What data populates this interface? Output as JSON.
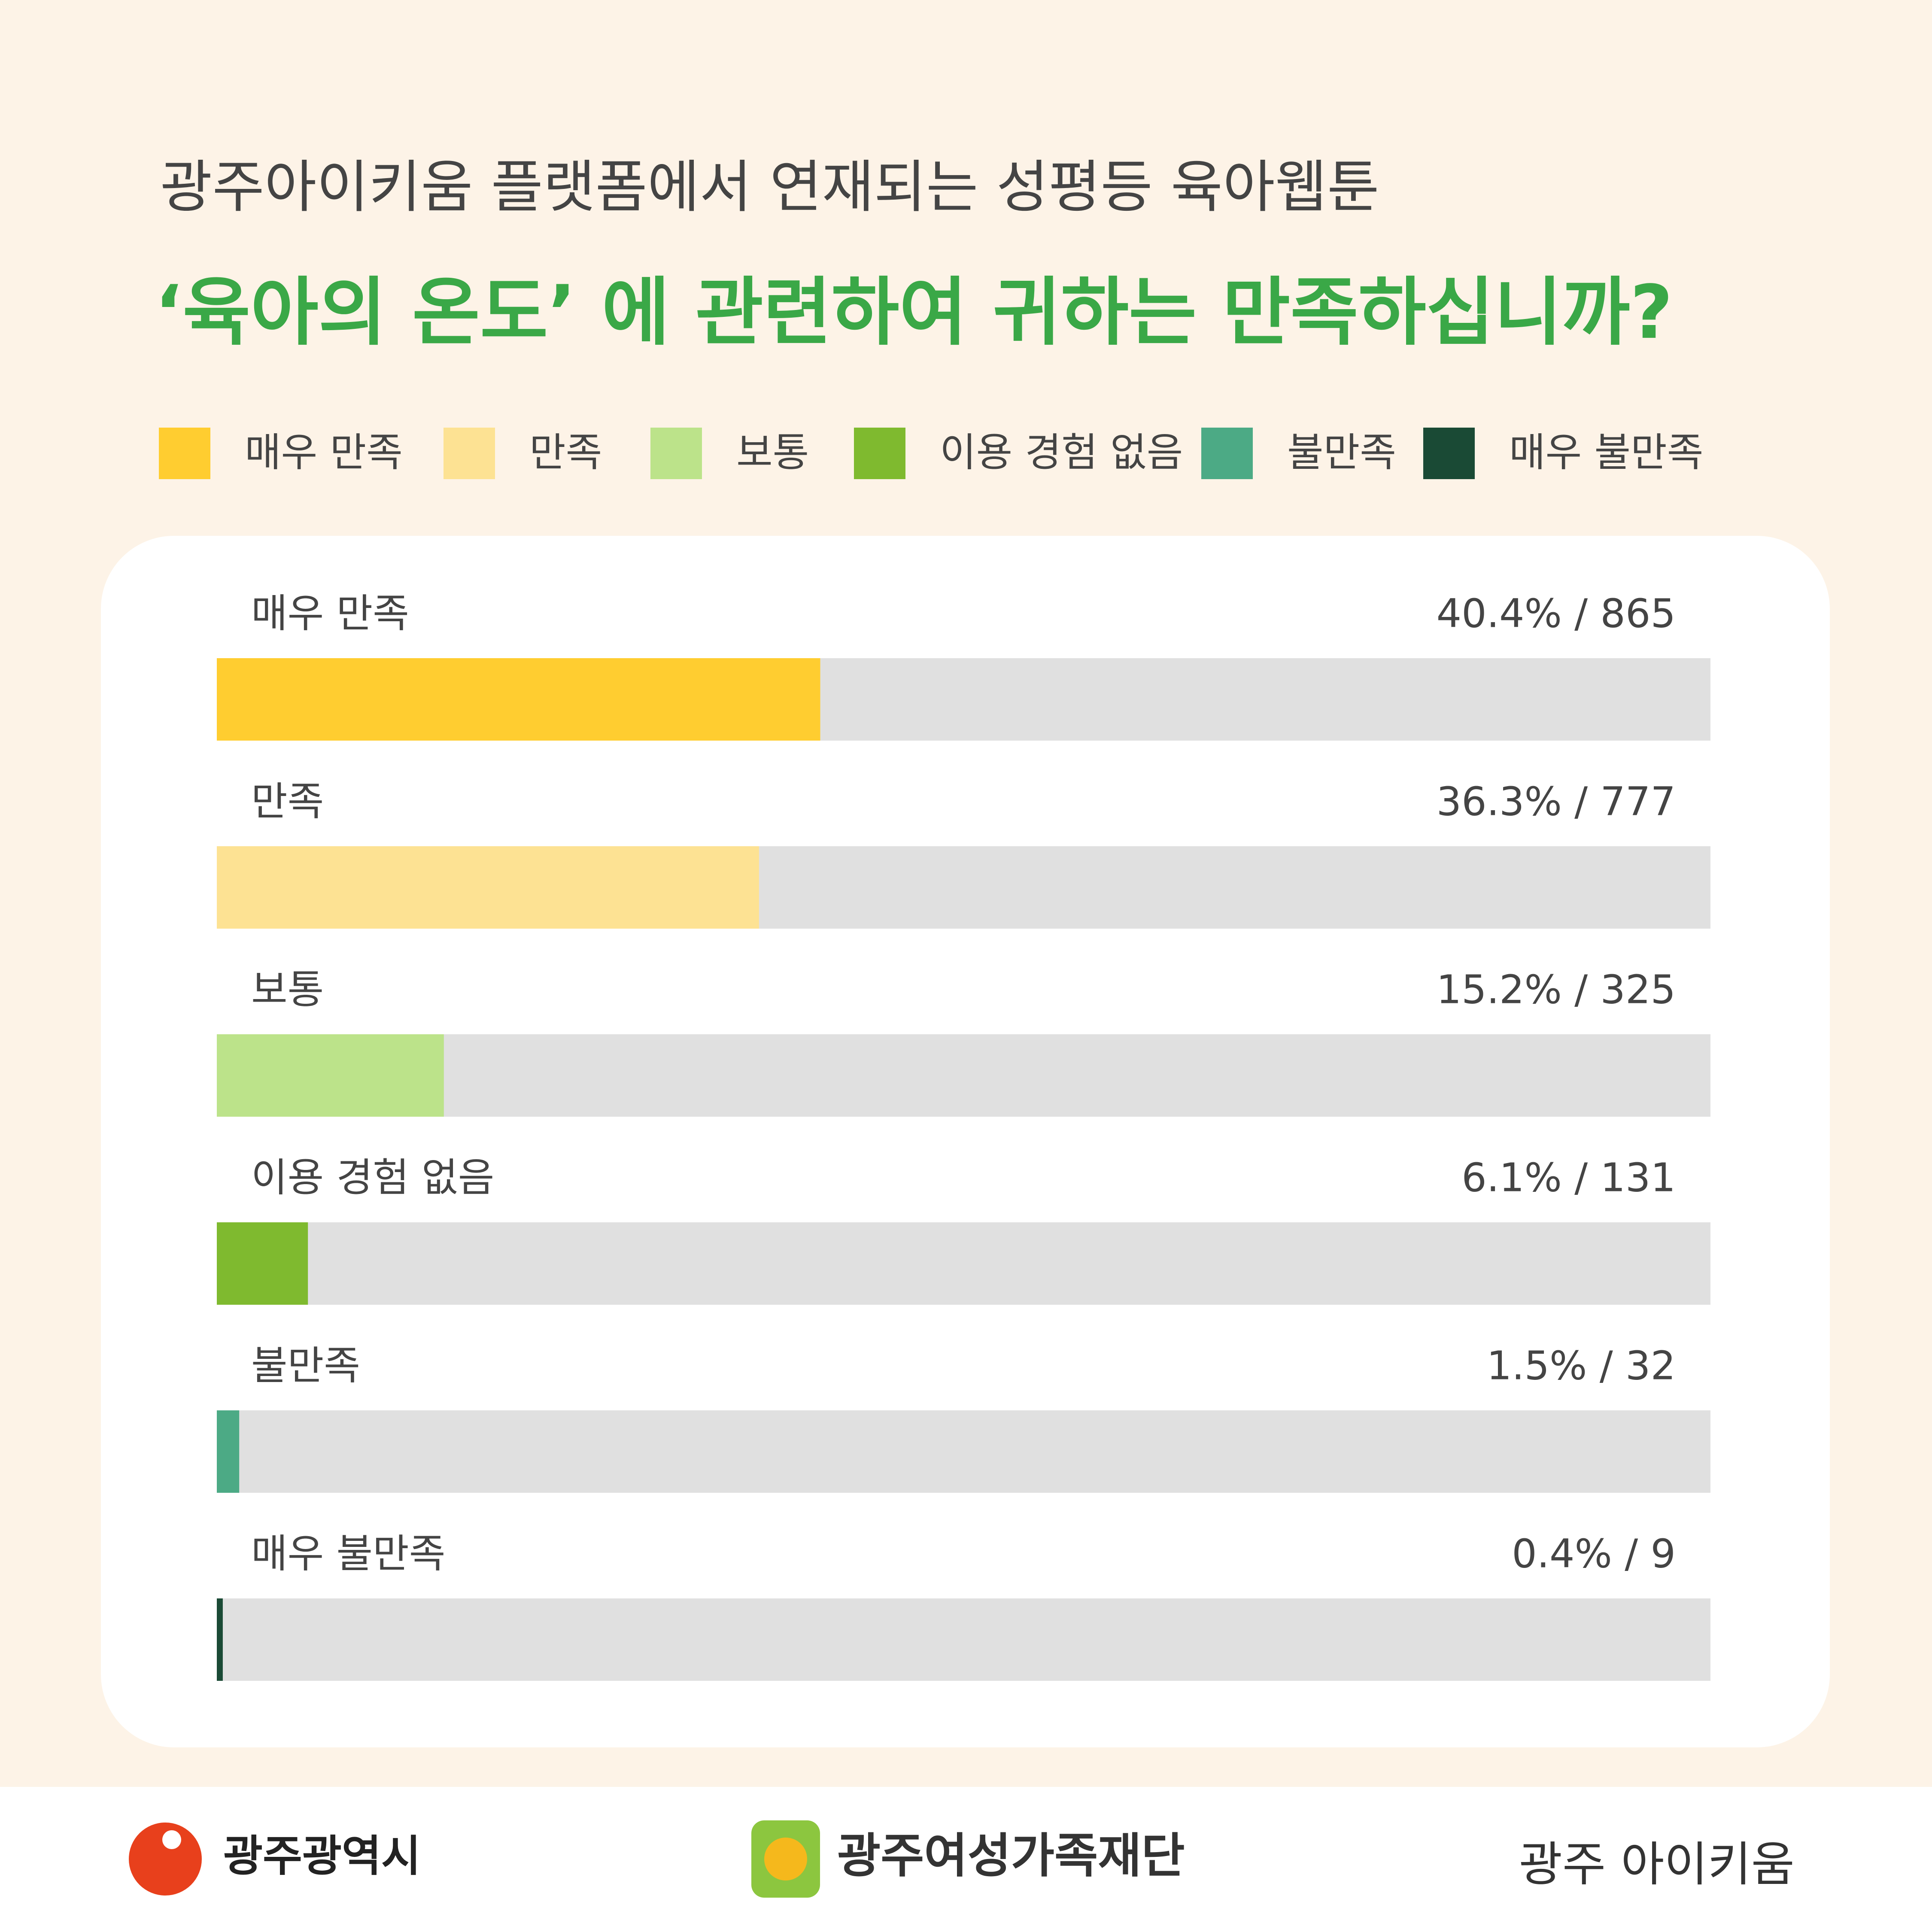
{
  "chart_data": {
    "type": "bar",
    "subtitle": "광주아이키움 플랫폼에서 연재되는 성평등 육아웹툰",
    "title": "‘육아의 온도’ 에 관련하여 귀하는 만족하십니까?",
    "categories": [
      "매우 만족",
      "만족",
      "보통",
      "이용 경험 없음",
      "불만족",
      "매우 불만족"
    ],
    "values": [
      40.4,
      36.3,
      15.2,
      6.1,
      1.5,
      0.4
    ],
    "value_labels": [
      "40.4% / 865",
      "36.3% / 777",
      "15.2% / 325",
      "6.1% / 131",
      "1.5% / 32",
      "0.4% / 9"
    ],
    "colors": [
      "#ffcd30",
      "#fde293",
      "#bce38a",
      "#7fba2f",
      "#4caa85",
      "#1a4a35"
    ],
    "track_color": "#e0e0e0",
    "xlim": [
      0,
      100
    ],
    "legend": "top"
  },
  "footer": {
    "logos": [
      "광주광역시",
      "광주여성가족재단",
      "광주 아이키움"
    ]
  }
}
